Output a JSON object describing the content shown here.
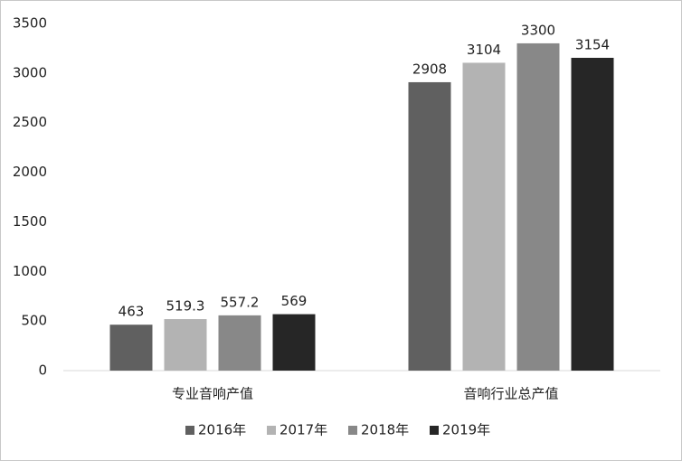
{
  "chart_data": {
    "type": "bar",
    "categories": [
      "专业音响产值",
      "音响行业总产值"
    ],
    "series": [
      {
        "name": "2016年",
        "color": "#606060",
        "values": [
          463,
          2908
        ]
      },
      {
        "name": "2017年",
        "color": "#b3b3b3",
        "values": [
          519.3,
          3104
        ]
      },
      {
        "name": "2018年",
        "color": "#888888",
        "values": [
          557.2,
          3300
        ]
      },
      {
        "name": "2019年",
        "color": "#262626",
        "values": [
          569,
          3154
        ]
      }
    ],
    "ylim": [
      0,
      3500
    ],
    "yticks": [
      0,
      500,
      1000,
      1500,
      2000,
      2500,
      3000,
      3500
    ],
    "grid": false,
    "legend": "bottom"
  }
}
